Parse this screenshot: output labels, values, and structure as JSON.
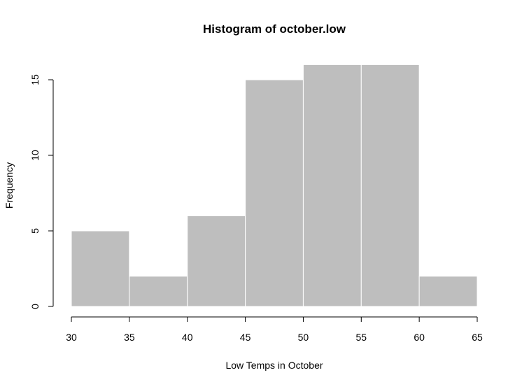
{
  "chart_data": {
    "type": "bar",
    "title": "Histogram of october.low",
    "xlabel": "Low Temps in October",
    "ylabel": "Frequency",
    "bins": [
      {
        "start": 30,
        "end": 35,
        "count": 5
      },
      {
        "start": 35,
        "end": 40,
        "count": 2
      },
      {
        "start": 40,
        "end": 45,
        "count": 6
      },
      {
        "start": 45,
        "end": 50,
        "count": 15
      },
      {
        "start": 50,
        "end": 55,
        "count": 16
      },
      {
        "start": 55,
        "end": 60,
        "count": 16
      },
      {
        "start": 60,
        "end": 65,
        "count": 2
      }
    ],
    "x_ticks": [
      30,
      35,
      40,
      45,
      50,
      55,
      60,
      65
    ],
    "y_ticks": [
      0,
      5,
      10,
      15
    ],
    "xlim": [
      30,
      65
    ],
    "ylim": [
      0,
      16
    ],
    "grid": false,
    "bar_color": "#bebebe",
    "bar_border_color": "#ffffff"
  }
}
